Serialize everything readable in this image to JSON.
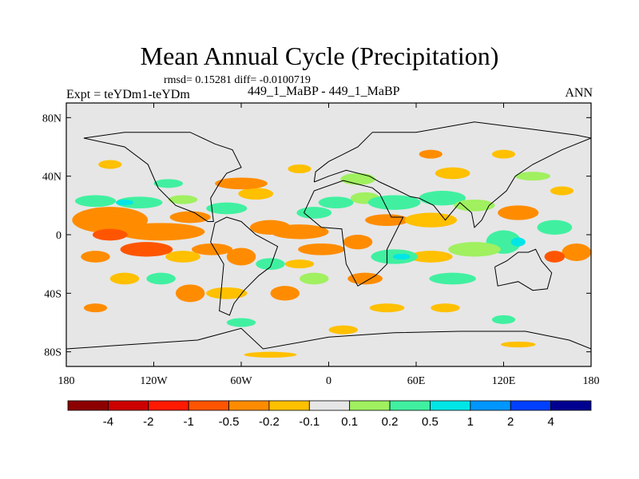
{
  "header": {
    "title": "Mean Annual Cycle (Precipitation)",
    "stats": "rmsd= 0.15281 diff= -0.0100719",
    "experiment": "Expt = teYDm1-teYDm",
    "case": "449_1_MaBP - 449_1_MaBP",
    "season": "ANN"
  },
  "chart_data": {
    "type": "heatmap",
    "title": "Mean Annual Cycle (Precipitation)",
    "subtitle": "rmsd= 0.15281 diff= -0.0100719",
    "projection": "cylindrical equidistant",
    "xlabel": "",
    "ylabel": "",
    "xlim": [
      -180,
      180
    ],
    "ylim": [
      -90,
      90
    ],
    "x_ticks": [
      {
        "value": -180,
        "label": "180"
      },
      {
        "value": -120,
        "label": "120W"
      },
      {
        "value": -60,
        "label": "60W"
      },
      {
        "value": 0,
        "label": "0"
      },
      {
        "value": 60,
        "label": "60E"
      },
      {
        "value": 120,
        "label": "120E"
      },
      {
        "value": 180,
        "label": "180"
      }
    ],
    "y_ticks": [
      {
        "value": 80,
        "label": "80N"
      },
      {
        "value": 40,
        "label": "40N"
      },
      {
        "value": 0,
        "label": "0"
      },
      {
        "value": -40,
        "label": "40S"
      },
      {
        "value": -80,
        "label": "80S"
      }
    ],
    "background_color": "#e6e6e6",
    "colorbar": {
      "levels": [
        "-4",
        "-2",
        "-1",
        "-0.5",
        "-0.2",
        "-0.1",
        "0.1",
        "0.2",
        "0.5",
        "1",
        "2",
        "4"
      ],
      "colors": [
        "#8c0000",
        "#cc0000",
        "#ff1a00",
        "#ff5500",
        "#ff8c00",
        "#ffc000",
        "#e6e6e6",
        "#a0f060",
        "#40f0a0",
        "#00e6e6",
        "#0096ff",
        "#0040ff",
        "#000090"
      ]
    },
    "anomalies": [
      {
        "lon": -150,
        "lat": 10,
        "rx": 26,
        "ry": 9,
        "color": "#ff8c00"
      },
      {
        "lon": -115,
        "lat": 2,
        "rx": 30,
        "ry": 6,
        "color": "#ff8c00"
      },
      {
        "lon": -150,
        "lat": 0,
        "rx": 12,
        "ry": 4,
        "color": "#ff5500"
      },
      {
        "lon": -95,
        "lat": 12,
        "rx": 14,
        "ry": 4,
        "color": "#ff8c00"
      },
      {
        "lon": -160,
        "lat": 23,
        "rx": 14,
        "ry": 4,
        "color": "#40f0a0"
      },
      {
        "lon": -130,
        "lat": 22,
        "rx": 16,
        "ry": 4,
        "color": "#40f0a0"
      },
      {
        "lon": -140,
        "lat": 22,
        "rx": 6,
        "ry": 2,
        "color": "#00e6e6"
      },
      {
        "lon": -100,
        "lat": 24,
        "rx": 10,
        "ry": 3,
        "color": "#a0f060"
      },
      {
        "lon": -70,
        "lat": 18,
        "rx": 14,
        "ry": 4,
        "color": "#40f0a0"
      },
      {
        "lon": -50,
        "lat": 28,
        "rx": 12,
        "ry": 4,
        "color": "#ffc000"
      },
      {
        "lon": -40,
        "lat": 5,
        "rx": 14,
        "ry": 5,
        "color": "#ff8c00"
      },
      {
        "lon": -20,
        "lat": 2,
        "rx": 20,
        "ry": 5,
        "color": "#ff8c00"
      },
      {
        "lon": -10,
        "lat": 15,
        "rx": 12,
        "ry": 4,
        "color": "#40f0a0"
      },
      {
        "lon": 5,
        "lat": 22,
        "rx": 12,
        "ry": 4,
        "color": "#40f0a0"
      },
      {
        "lon": 25,
        "lat": 25,
        "rx": 10,
        "ry": 4,
        "color": "#a0f060"
      },
      {
        "lon": 45,
        "lat": 22,
        "rx": 18,
        "ry": 5,
        "color": "#40f0a0"
      },
      {
        "lon": 40,
        "lat": 10,
        "rx": 15,
        "ry": 4,
        "color": "#ff8c00"
      },
      {
        "lon": 70,
        "lat": 10,
        "rx": 18,
        "ry": 5,
        "color": "#ffc000"
      },
      {
        "lon": 78,
        "lat": 25,
        "rx": 16,
        "ry": 5,
        "color": "#40f0a0"
      },
      {
        "lon": 100,
        "lat": 20,
        "rx": 14,
        "ry": 4,
        "color": "#a0f060"
      },
      {
        "lon": 130,
        "lat": 15,
        "rx": 14,
        "ry": 5,
        "color": "#ff8c00"
      },
      {
        "lon": 155,
        "lat": 5,
        "rx": 12,
        "ry": 5,
        "color": "#40f0a0"
      },
      {
        "lon": 170,
        "lat": -12,
        "rx": 10,
        "ry": 6,
        "color": "#ff8c00"
      },
      {
        "lon": 155,
        "lat": -15,
        "rx": 7,
        "ry": 4,
        "color": "#ff5500"
      },
      {
        "lon": 120,
        "lat": -5,
        "rx": 12,
        "ry": 8,
        "color": "#40f0a0"
      },
      {
        "lon": 130,
        "lat": -5,
        "rx": 5,
        "ry": 3,
        "color": "#00e6e6"
      },
      {
        "lon": 100,
        "lat": -10,
        "rx": 18,
        "ry": 5,
        "color": "#a0f060"
      },
      {
        "lon": 85,
        "lat": -30,
        "rx": 16,
        "ry": 4,
        "color": "#40f0a0"
      },
      {
        "lon": 70,
        "lat": -15,
        "rx": 15,
        "ry": 4,
        "color": "#ffc000"
      },
      {
        "lon": 45,
        "lat": -15,
        "rx": 16,
        "ry": 5,
        "color": "#40f0a0"
      },
      {
        "lon": 50,
        "lat": -15,
        "rx": 6,
        "ry": 2,
        "color": "#00e6e6"
      },
      {
        "lon": 25,
        "lat": -30,
        "rx": 12,
        "ry": 4,
        "color": "#ff8c00"
      },
      {
        "lon": 20,
        "lat": -5,
        "rx": 10,
        "ry": 5,
        "color": "#ff8c00"
      },
      {
        "lon": -5,
        "lat": -10,
        "rx": 16,
        "ry": 4,
        "color": "#ff8c00"
      },
      {
        "lon": -20,
        "lat": -20,
        "rx": 10,
        "ry": 3,
        "color": "#ffc000"
      },
      {
        "lon": -40,
        "lat": -20,
        "rx": 10,
        "ry": 4,
        "color": "#40f0a0"
      },
      {
        "lon": -60,
        "lat": -15,
        "rx": 10,
        "ry": 6,
        "color": "#ff8c00"
      },
      {
        "lon": -80,
        "lat": -10,
        "rx": 14,
        "ry": 4,
        "color": "#ff8c00"
      },
      {
        "lon": -100,
        "lat": -15,
        "rx": 12,
        "ry": 4,
        "color": "#ffc000"
      },
      {
        "lon": -125,
        "lat": -10,
        "rx": 18,
        "ry": 5,
        "color": "#ff5500"
      },
      {
        "lon": -160,
        "lat": -15,
        "rx": 10,
        "ry": 4,
        "color": "#ff8c00"
      },
      {
        "lon": -140,
        "lat": -30,
        "rx": 10,
        "ry": 4,
        "color": "#ffc000"
      },
      {
        "lon": -115,
        "lat": -30,
        "rx": 10,
        "ry": 4,
        "color": "#40f0a0"
      },
      {
        "lon": -95,
        "lat": -40,
        "rx": 10,
        "ry": 6,
        "color": "#ff8c00"
      },
      {
        "lon": -70,
        "lat": -40,
        "rx": 14,
        "ry": 4,
        "color": "#ffc000"
      },
      {
        "lon": -30,
        "lat": -40,
        "rx": 10,
        "ry": 5,
        "color": "#ff8c00"
      },
      {
        "lon": -10,
        "lat": -30,
        "rx": 10,
        "ry": 4,
        "color": "#a0f060"
      },
      {
        "lon": -60,
        "lat": 35,
        "rx": 18,
        "ry": 4,
        "color": "#ff8c00"
      },
      {
        "lon": -20,
        "lat": 45,
        "rx": 8,
        "ry": 3,
        "color": "#ffc000"
      },
      {
        "lon": -110,
        "lat": 35,
        "rx": 10,
        "ry": 3,
        "color": "#40f0a0"
      },
      {
        "lon": 20,
        "lat": 38,
        "rx": 12,
        "ry": 4,
        "color": "#a0f060"
      },
      {
        "lon": 85,
        "lat": 42,
        "rx": 12,
        "ry": 4,
        "color": "#ffc000"
      },
      {
        "lon": 140,
        "lat": 40,
        "rx": 12,
        "ry": 3,
        "color": "#a0f060"
      },
      {
        "lon": 160,
        "lat": 30,
        "rx": 8,
        "ry": 3,
        "color": "#ffc000"
      },
      {
        "lon": 70,
        "lat": 55,
        "rx": 8,
        "ry": 3,
        "color": "#ff8c00"
      },
      {
        "lon": 120,
        "lat": 55,
        "rx": 8,
        "ry": 3,
        "color": "#ffc000"
      },
      {
        "lon": -150,
        "lat": 48,
        "rx": 8,
        "ry": 3,
        "color": "#ffc000"
      },
      {
        "lon": 40,
        "lat": -50,
        "rx": 12,
        "ry": 3,
        "color": "#ffc000"
      },
      {
        "lon": 80,
        "lat": -50,
        "rx": 10,
        "ry": 3,
        "color": "#ffc000"
      },
      {
        "lon": -160,
        "lat": -50,
        "rx": 8,
        "ry": 3,
        "color": "#ff8c00"
      },
      {
        "lon": -60,
        "lat": -60,
        "rx": 10,
        "ry": 3,
        "color": "#40f0a0"
      },
      {
        "lon": 10,
        "lat": -65,
        "rx": 10,
        "ry": 3,
        "color": "#ffc000"
      },
      {
        "lon": 130,
        "lat": -75,
        "rx": 12,
        "ry": 2,
        "color": "#ffc000"
      },
      {
        "lon": -40,
        "lat": -82,
        "rx": 18,
        "ry": 2,
        "color": "#ffc000"
      },
      {
        "lon": 120,
        "lat": -58,
        "rx": 8,
        "ry": 3,
        "color": "#40f0a0"
      }
    ],
    "coastlines": [
      {
        "name": "africa",
        "points": [
          [
            -17,
            15
          ],
          [
            -10,
            30
          ],
          [
            10,
            37
          ],
          [
            30,
            32
          ],
          [
            35,
            28
          ],
          [
            43,
            12
          ],
          [
            51,
            12
          ],
          [
            40,
            -10
          ],
          [
            40,
            -20
          ],
          [
            32,
            -28
          ],
          [
            20,
            -35
          ],
          [
            12,
            -20
          ],
          [
            10,
            -5
          ],
          [
            9,
            4
          ],
          [
            -5,
            5
          ],
          [
            -17,
            15
          ]
        ]
      },
      {
        "name": "south-america",
        "points": [
          [
            -78,
            8
          ],
          [
            -70,
            12
          ],
          [
            -60,
            9
          ],
          [
            -50,
            0
          ],
          [
            -35,
            -8
          ],
          [
            -40,
            -22
          ],
          [
            -48,
            -28
          ],
          [
            -58,
            -38
          ],
          [
            -65,
            -47
          ],
          [
            -68,
            -55
          ],
          [
            -75,
            -52
          ],
          [
            -72,
            -20
          ],
          [
            -81,
            -5
          ],
          [
            -78,
            8
          ]
        ]
      },
      {
        "name": "north-america",
        "points": [
          [
            -168,
            66
          ],
          [
            -140,
            60
          ],
          [
            -124,
            48
          ],
          [
            -117,
            32
          ],
          [
            -105,
            20
          ],
          [
            -92,
            15
          ],
          [
            -83,
            9
          ],
          [
            -79,
            9
          ],
          [
            -81,
            25
          ],
          [
            -75,
            35
          ],
          [
            -70,
            42
          ],
          [
            -60,
            46
          ],
          [
            -66,
            58
          ],
          [
            -78,
            62
          ],
          [
            -95,
            70
          ],
          [
            -120,
            70
          ],
          [
            -140,
            70
          ],
          [
            -168,
            66
          ]
        ]
      },
      {
        "name": "eurasia",
        "points": [
          [
            -10,
            36
          ],
          [
            -9,
            43
          ],
          [
            0,
            50
          ],
          [
            10,
            55
          ],
          [
            20,
            60
          ],
          [
            30,
            70
          ],
          [
            60,
            70
          ],
          [
            100,
            77
          ],
          [
            140,
            72
          ],
          [
            170,
            68
          ],
          [
            180,
            66
          ],
          [
            160,
            58
          ],
          [
            140,
            48
          ],
          [
            128,
            40
          ],
          [
            122,
            30
          ],
          [
            110,
            20
          ],
          [
            105,
            10
          ],
          [
            100,
            5
          ],
          [
            98,
            15
          ],
          [
            90,
            22
          ],
          [
            80,
            10
          ],
          [
            72,
            20
          ],
          [
            62,
            25
          ],
          [
            56,
            26
          ],
          [
            48,
            30
          ],
          [
            35,
            36
          ],
          [
            28,
            40
          ],
          [
            12,
            44
          ],
          [
            0,
            40
          ],
          [
            -10,
            36
          ]
        ]
      },
      {
        "name": "australia",
        "points": [
          [
            114,
            -22
          ],
          [
            122,
            -18
          ],
          [
            130,
            -12
          ],
          [
            137,
            -12
          ],
          [
            142,
            -10
          ],
          [
            146,
            -18
          ],
          [
            153,
            -26
          ],
          [
            150,
            -37
          ],
          [
            140,
            -38
          ],
          [
            130,
            -32
          ],
          [
            116,
            -35
          ],
          [
            114,
            -22
          ]
        ]
      },
      {
        "name": "antarctica",
        "points": [
          [
            -180,
            -78
          ],
          [
            -150,
            -76
          ],
          [
            -90,
            -72
          ],
          [
            -60,
            -64
          ],
          [
            -45,
            -78
          ],
          [
            0,
            -70
          ],
          [
            45,
            -67
          ],
          [
            90,
            -66
          ],
          [
            135,
            -66
          ],
          [
            165,
            -72
          ],
          [
            180,
            -78
          ]
        ]
      }
    ]
  }
}
